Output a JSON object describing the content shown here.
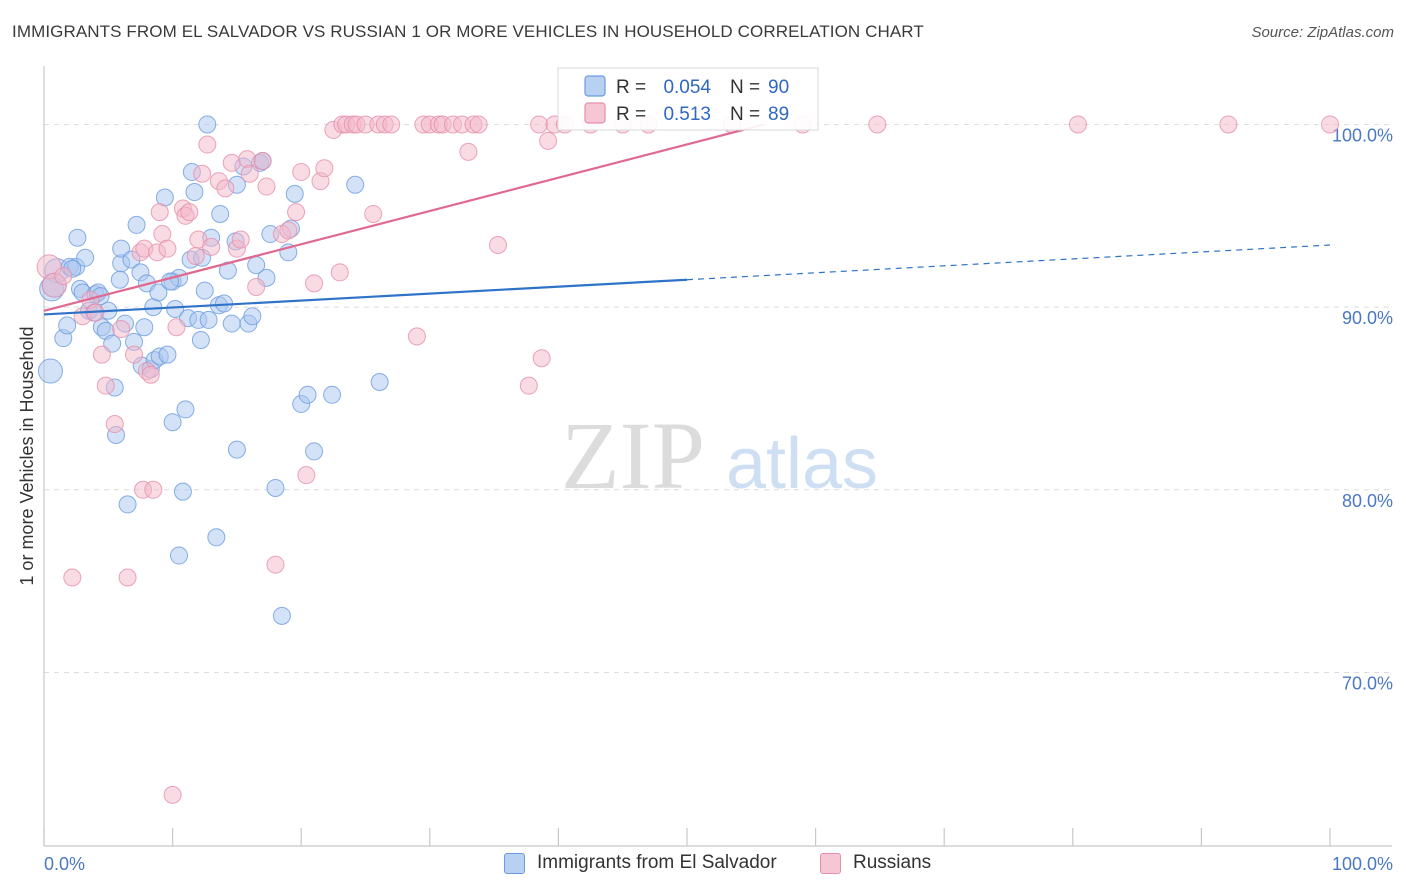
{
  "chart_data": {
    "type": "scatter",
    "title": "IMMIGRANTS FROM EL SALVADOR VS RUSSIAN 1 OR MORE VEHICLES IN HOUSEHOLD CORRELATION CHART",
    "source": "Source: ZipAtlas.com",
    "xlabel": "",
    "ylabel": "1 or more Vehicles in Household",
    "xlim": [
      0,
      100
    ],
    "ylim": [
      60.5,
      103.2
    ],
    "x_tick_labels": [
      "0.0%",
      "100.0%"
    ],
    "y_ticks": [
      70,
      80,
      90,
      100
    ],
    "y_tick_labels": [
      "70.0%",
      "80.0%",
      "90.0%",
      "100.0%"
    ],
    "grid": true,
    "legend_position": "top-center",
    "watermark": {
      "left": "ZIP",
      "right": "atlas"
    },
    "stats_legend": [
      {
        "r_label": "R =",
        "r_value": "0.054",
        "n_label": "N =",
        "n_value": "90"
      },
      {
        "r_label": "R =",
        "r_value": "0.513",
        "n_label": "N =",
        "n_value": "89"
      }
    ],
    "series": [
      {
        "name": "Immigrants from El Salvador",
        "color": "#6a9be0",
        "fill": "#a9c6ef",
        "line_color": "#2f73c9",
        "trend": {
          "x0": 0,
          "y0": 89.6,
          "x1": 50,
          "y1": 91.5,
          "dash_to_x": 100,
          "dash_to_y": 93.4
        },
        "points": [
          [
            0.5,
            86.5
          ],
          [
            0.6,
            91.0
          ],
          [
            1.0,
            92.0
          ],
          [
            1.5,
            88.3
          ],
          [
            1.8,
            89.0
          ],
          [
            2.0,
            92.2
          ],
          [
            2.5,
            92.2
          ],
          [
            2.6,
            93.8
          ],
          [
            2.8,
            91.0
          ],
          [
            3.0,
            90.8
          ],
          [
            3.2,
            92.7
          ],
          [
            3.5,
            89.8
          ],
          [
            4.0,
            90.7
          ],
          [
            4.2,
            90.8
          ],
          [
            4.4,
            90.6
          ],
          [
            4.5,
            88.9
          ],
          [
            4.8,
            88.7
          ],
          [
            5.0,
            89.8
          ],
          [
            5.3,
            88.0
          ],
          [
            5.5,
            85.6
          ],
          [
            5.6,
            83.0
          ],
          [
            6.0,
            92.4
          ],
          [
            6.0,
            93.2
          ],
          [
            6.3,
            89.1
          ],
          [
            6.5,
            79.2
          ],
          [
            6.8,
            92.6
          ],
          [
            7.0,
            88.1
          ],
          [
            7.2,
            94.5
          ],
          [
            7.5,
            91.9
          ],
          [
            7.6,
            86.8
          ],
          [
            7.8,
            88.9
          ],
          [
            8.0,
            91.3
          ],
          [
            8.3,
            86.6
          ],
          [
            8.5,
            90.0
          ],
          [
            8.6,
            87.1
          ],
          [
            8.9,
            90.8
          ],
          [
            9.0,
            87.3
          ],
          [
            9.4,
            96.0
          ],
          [
            9.6,
            87.4
          ],
          [
            10.0,
            91.4
          ],
          [
            10.0,
            83.7
          ],
          [
            10.2,
            89.9
          ],
          [
            10.5,
            91.6
          ],
          [
            10.5,
            76.4
          ],
          [
            10.8,
            79.9
          ],
          [
            11.0,
            84.4
          ],
          [
            11.2,
            89.4
          ],
          [
            11.4,
            92.6
          ],
          [
            11.5,
            97.4
          ],
          [
            11.7,
            96.3
          ],
          [
            12.0,
            89.3
          ],
          [
            12.2,
            88.2
          ],
          [
            12.3,
            92.7
          ],
          [
            12.8,
            89.3
          ],
          [
            12.7,
            100.0
          ],
          [
            13.0,
            93.8
          ],
          [
            13.4,
            77.4
          ],
          [
            13.6,
            90.1
          ],
          [
            13.7,
            95.1
          ],
          [
            14.0,
            90.2
          ],
          [
            14.3,
            92.0
          ],
          [
            14.6,
            89.1
          ],
          [
            15.0,
            82.2
          ],
          [
            15.0,
            96.7
          ],
          [
            15.5,
            97.7
          ],
          [
            15.9,
            89.1
          ],
          [
            16.2,
            89.5
          ],
          [
            16.5,
            92.3
          ],
          [
            16.8,
            97.9
          ],
          [
            17.0,
            98.0
          ],
          [
            17.3,
            91.6
          ],
          [
            18.0,
            80.1
          ],
          [
            18.5,
            73.1
          ],
          [
            19.0,
            93.0
          ],
          [
            19.2,
            94.3
          ],
          [
            19.5,
            96.2
          ],
          [
            20.0,
            84.7
          ],
          [
            20.5,
            85.2
          ],
          [
            21.0,
            82.1
          ],
          [
            22.4,
            85.2
          ],
          [
            24.2,
            96.7
          ],
          [
            26.1,
            85.9
          ],
          [
            0.8,
            91.2
          ],
          [
            2.2,
            92.1
          ],
          [
            3.9,
            89.7
          ],
          [
            5.9,
            91.5
          ],
          [
            9.8,
            91.4
          ],
          [
            12.5,
            90.9
          ],
          [
            17.6,
            94.0
          ],
          [
            14.9,
            93.6
          ]
        ]
      },
      {
        "name": "Russians",
        "color": "#e68faa",
        "fill": "#f4b8ca",
        "line_color": "#e0698f",
        "trend": {
          "x0": 0,
          "y0": 89.8,
          "x1": 56,
          "y1": 100.0
        },
        "points": [
          [
            0.4,
            92.2
          ],
          [
            0.8,
            91.2
          ],
          [
            1.5,
            91.7
          ],
          [
            2.2,
            75.2
          ],
          [
            3.0,
            89.5
          ],
          [
            3.6,
            90.4
          ],
          [
            4.0,
            89.7
          ],
          [
            4.5,
            87.4
          ],
          [
            4.8,
            85.7
          ],
          [
            5.5,
            83.6
          ],
          [
            6.0,
            88.8
          ],
          [
            6.5,
            75.2
          ],
          [
            7.0,
            87.4
          ],
          [
            7.5,
            93.0
          ],
          [
            7.7,
            80.0
          ],
          [
            7.8,
            93.2
          ],
          [
            8.0,
            86.5
          ],
          [
            8.3,
            86.3
          ],
          [
            8.5,
            80.0
          ],
          [
            8.8,
            93.0
          ],
          [
            9.0,
            95.2
          ],
          [
            9.2,
            94.0
          ],
          [
            9.6,
            93.2
          ],
          [
            10.0,
            63.3
          ],
          [
            10.3,
            88.9
          ],
          [
            10.8,
            95.4
          ],
          [
            11.0,
            95.0
          ],
          [
            11.3,
            95.2
          ],
          [
            11.8,
            92.8
          ],
          [
            12.0,
            93.7
          ],
          [
            12.3,
            97.3
          ],
          [
            12.7,
            98.9
          ],
          [
            13.0,
            93.3
          ],
          [
            13.6,
            96.9
          ],
          [
            14.1,
            96.5
          ],
          [
            14.6,
            97.9
          ],
          [
            15.0,
            93.2
          ],
          [
            15.3,
            93.7
          ],
          [
            15.8,
            98.1
          ],
          [
            16.0,
            97.3
          ],
          [
            16.5,
            91.1
          ],
          [
            17.0,
            98.0
          ],
          [
            17.3,
            96.6
          ],
          [
            18.0,
            75.9
          ],
          [
            18.5,
            94.0
          ],
          [
            19.0,
            94.2
          ],
          [
            19.6,
            95.2
          ],
          [
            20.0,
            97.4
          ],
          [
            20.4,
            80.8
          ],
          [
            21.0,
            91.3
          ],
          [
            21.5,
            96.9
          ],
          [
            21.8,
            97.6
          ],
          [
            22.5,
            99.7
          ],
          [
            23.0,
            91.9
          ],
          [
            23.2,
            100.0
          ],
          [
            23.5,
            100.0
          ],
          [
            24.0,
            100.0
          ],
          [
            24.3,
            100.0
          ],
          [
            25.0,
            100.0
          ],
          [
            25.6,
            95.1
          ],
          [
            26.0,
            100.0
          ],
          [
            26.5,
            100.0
          ],
          [
            27.0,
            100.0
          ],
          [
            29.0,
            88.4
          ],
          [
            29.5,
            100.0
          ],
          [
            30.0,
            100.0
          ],
          [
            30.7,
            100.0
          ],
          [
            31.0,
            100.0
          ],
          [
            31.8,
            100.0
          ],
          [
            32.5,
            100.0
          ],
          [
            33.0,
            98.5
          ],
          [
            33.4,
            100.0
          ],
          [
            33.8,
            100.0
          ],
          [
            35.3,
            93.4
          ],
          [
            37.7,
            85.7
          ],
          [
            38.5,
            100.0
          ],
          [
            38.7,
            87.2
          ],
          [
            39.2,
            99.1
          ],
          [
            39.7,
            100.0
          ],
          [
            40.5,
            100.0
          ],
          [
            42.5,
            100.0
          ],
          [
            45.0,
            100.0
          ],
          [
            47.0,
            100.0
          ],
          [
            53.5,
            100.0
          ],
          [
            59.0,
            100.0
          ],
          [
            64.8,
            100.0
          ],
          [
            80.4,
            100.0
          ],
          [
            92.1,
            100.0
          ],
          [
            100.0,
            100.0
          ]
        ]
      }
    ]
  }
}
